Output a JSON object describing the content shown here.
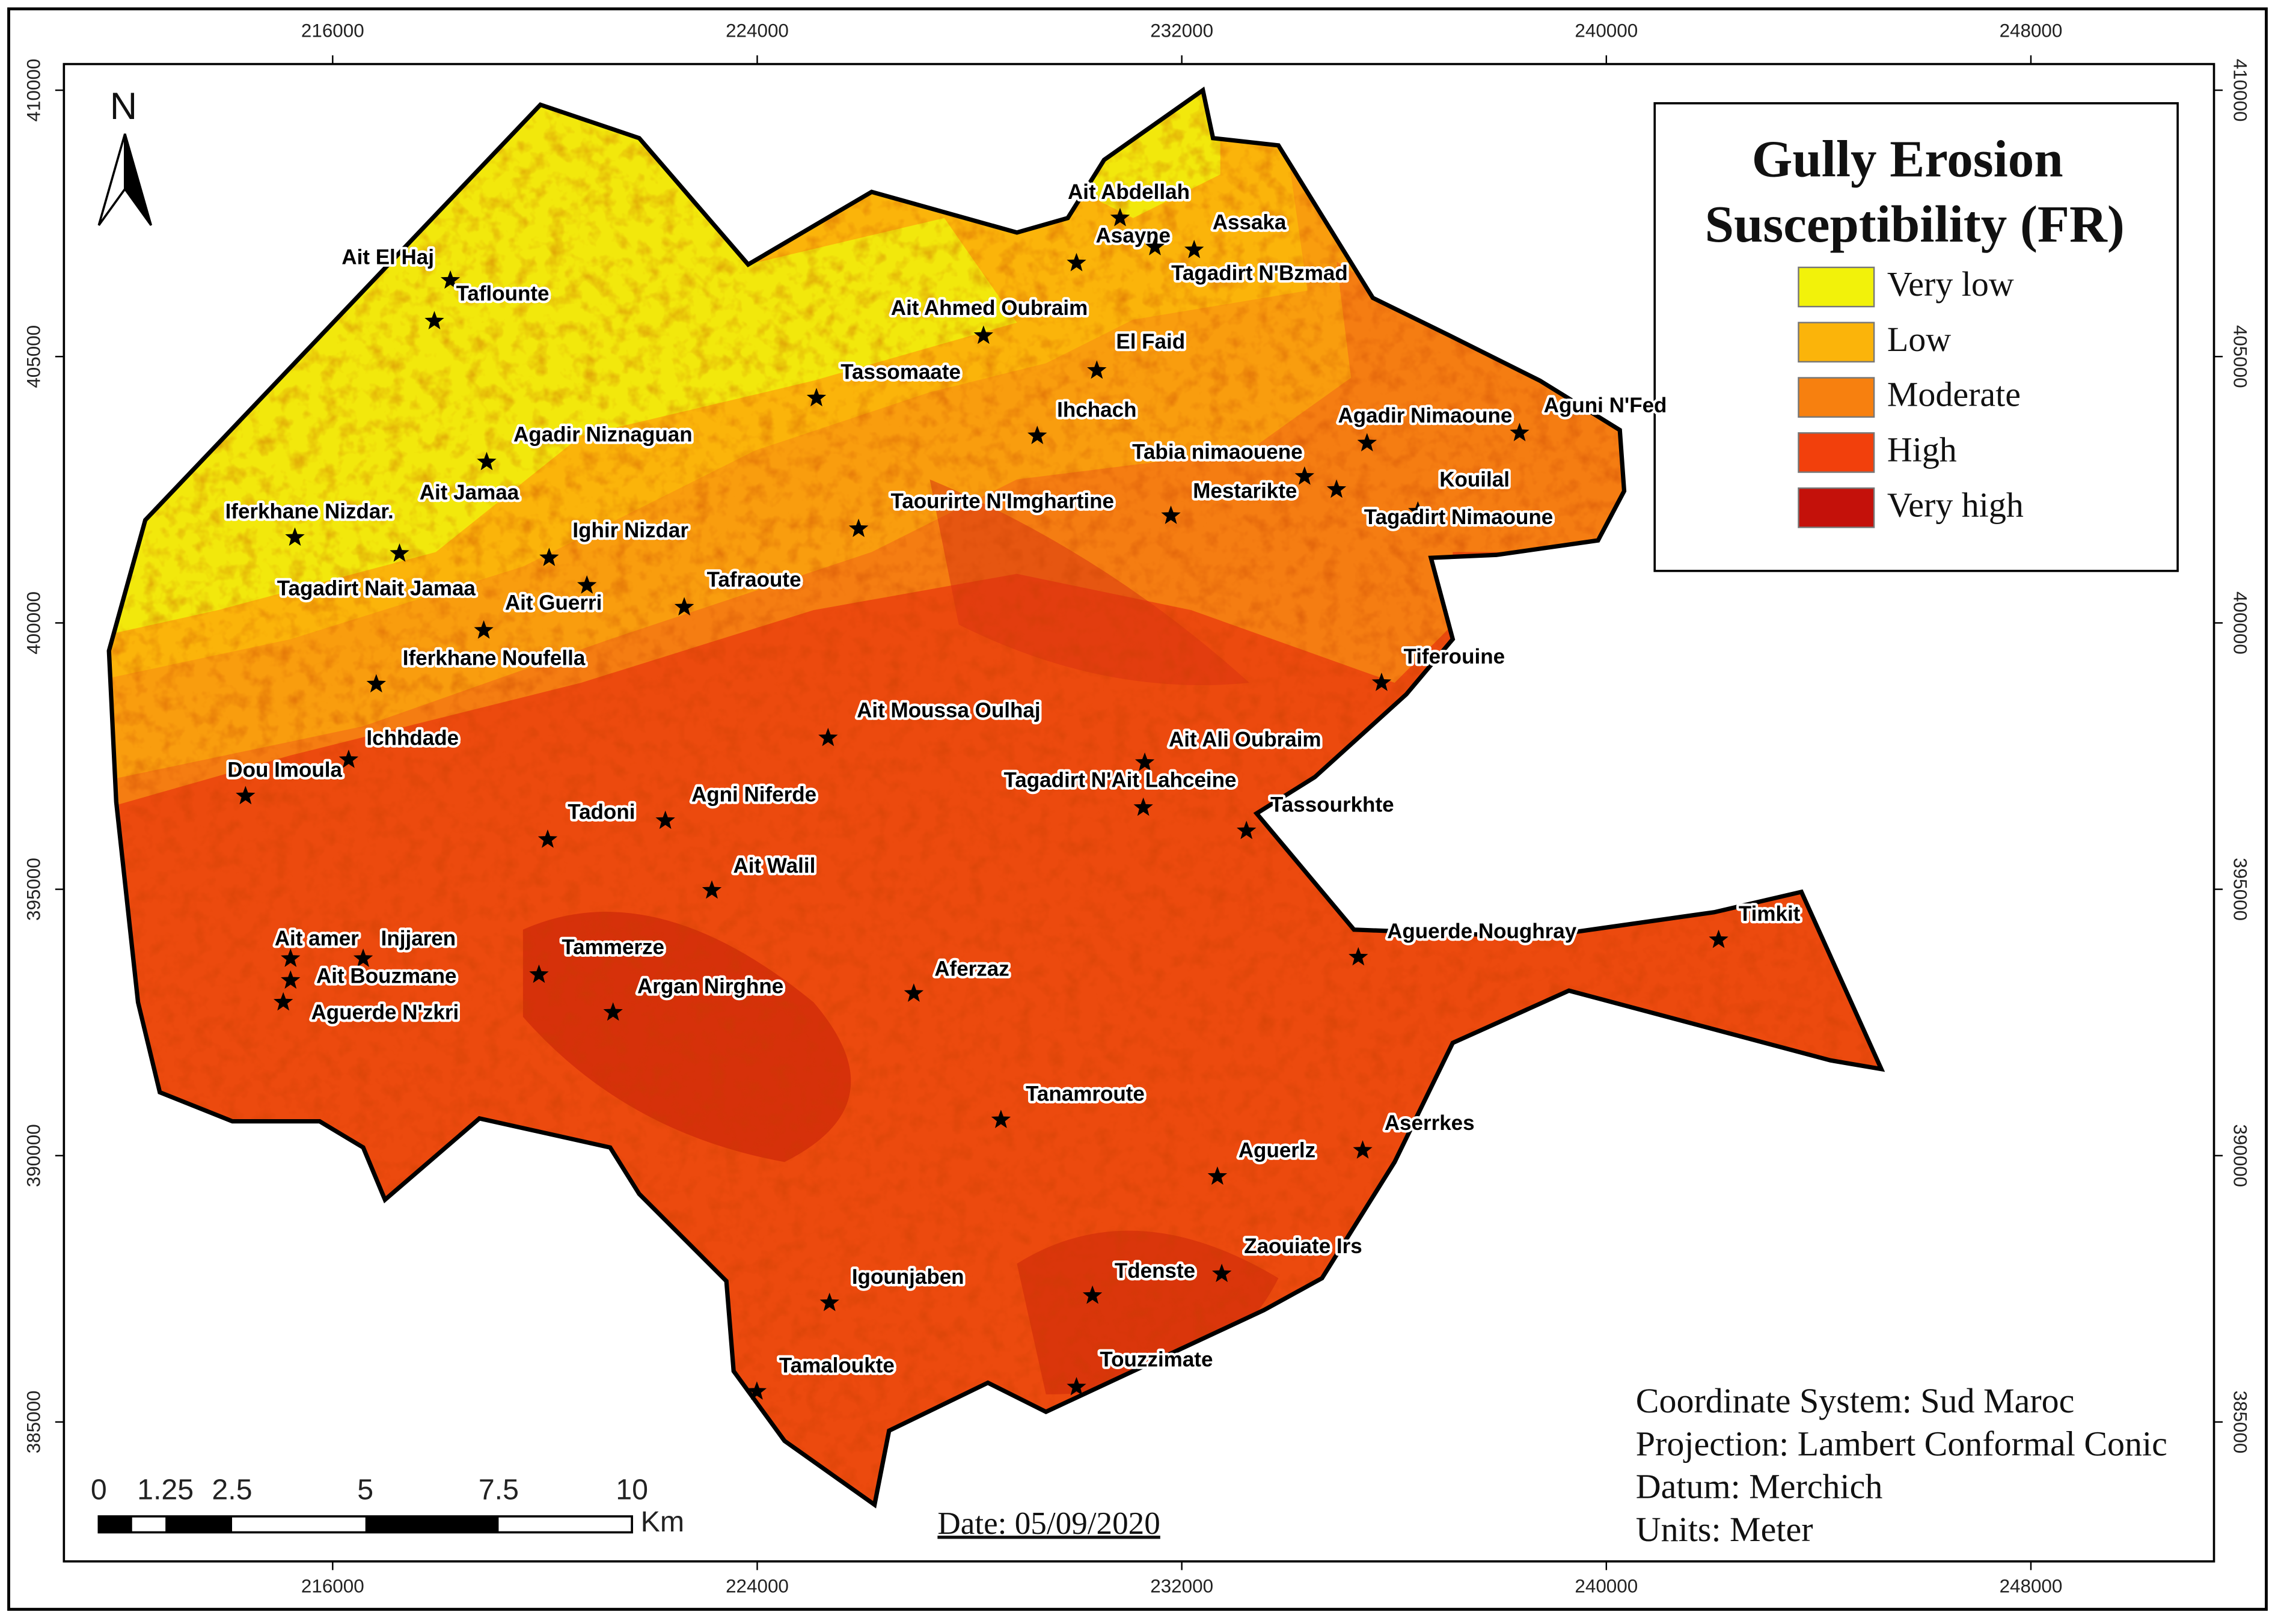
{
  "legend": {
    "title": [
      "Gully Erosion",
      "Susceptibility (FR)"
    ],
    "items": [
      {
        "label": "Very low",
        "color": "#f2f20a"
      },
      {
        "label": "Low",
        "color": "#fbb40a"
      },
      {
        "label": "Moderate",
        "color": "#f7800f"
      },
      {
        "label": "High",
        "color": "#f2400c"
      },
      {
        "label": "Very high",
        "color": "#c4110a"
      }
    ]
  },
  "grid": {
    "xlim": [
      210936,
      251450
    ],
    "ylim": [
      382383,
      410491
    ],
    "xticks": [
      216000,
      224000,
      232000,
      240000,
      248000
    ],
    "yticks": [
      385000,
      390000,
      395000,
      400000,
      405000,
      410000
    ]
  },
  "north": "N",
  "places": [
    "Ait Abdellah",
    "Asayne",
    "Assaka",
    "Tagadirt N'Bzmad",
    "Ait El Haj",
    "Taflounte",
    "Ait Ahmed Oubraim",
    "El Faid",
    "Tassomaate",
    "Ihchach",
    "Agadir Nimaoune",
    "Aguni N'Fed",
    "Agadir Niznaguan",
    "Tabia nimaouene",
    "Kouilal",
    "Mestarikte",
    "Tagadirt Nimaoune",
    "Taourirte N'Imghartine",
    "Ait Jamaa",
    "Iferkhane Nizdar.",
    "Ighir Nizdar",
    "Tagadirt Nait Jamaa",
    "Ait Guerri",
    "Tafraoute",
    "Iferkhane Noufella",
    "Tiferouine",
    "Ait Moussa Oulhaj",
    "Ichhdade",
    "Ait Ali Oubraim",
    "Dou Imoula",
    "Tagadirt N'Ait Lahceine",
    "Agni Niferde",
    "Tassourkhte",
    "Tadoni",
    "Ait Walil",
    "Ait amer",
    "Injjaren",
    "Aguerde Noughray",
    "Timkit",
    "Tammerze",
    "Ait Bouzmane",
    "Aferzaz",
    "Argan Nirghne",
    "Aguerde N'zkri",
    "Tanamroute",
    "Aserrkes",
    "Aguerlz",
    "Zaouiate Irs",
    "Tdenste",
    "Igounjaben",
    "Touzzimate",
    "Tamaloukte"
  ],
  "scale_bar": {
    "ticks": [
      0,
      1.25,
      2.5,
      5,
      7.5,
      10
    ],
    "unit": "Km"
  },
  "date": "Date: 05/09/2020",
  "info": [
    "Coordinate System: Sud Maroc",
    "Projection: Lambert Conformal Conic",
    "Datum: Merchich",
    "Units: Meter"
  ]
}
